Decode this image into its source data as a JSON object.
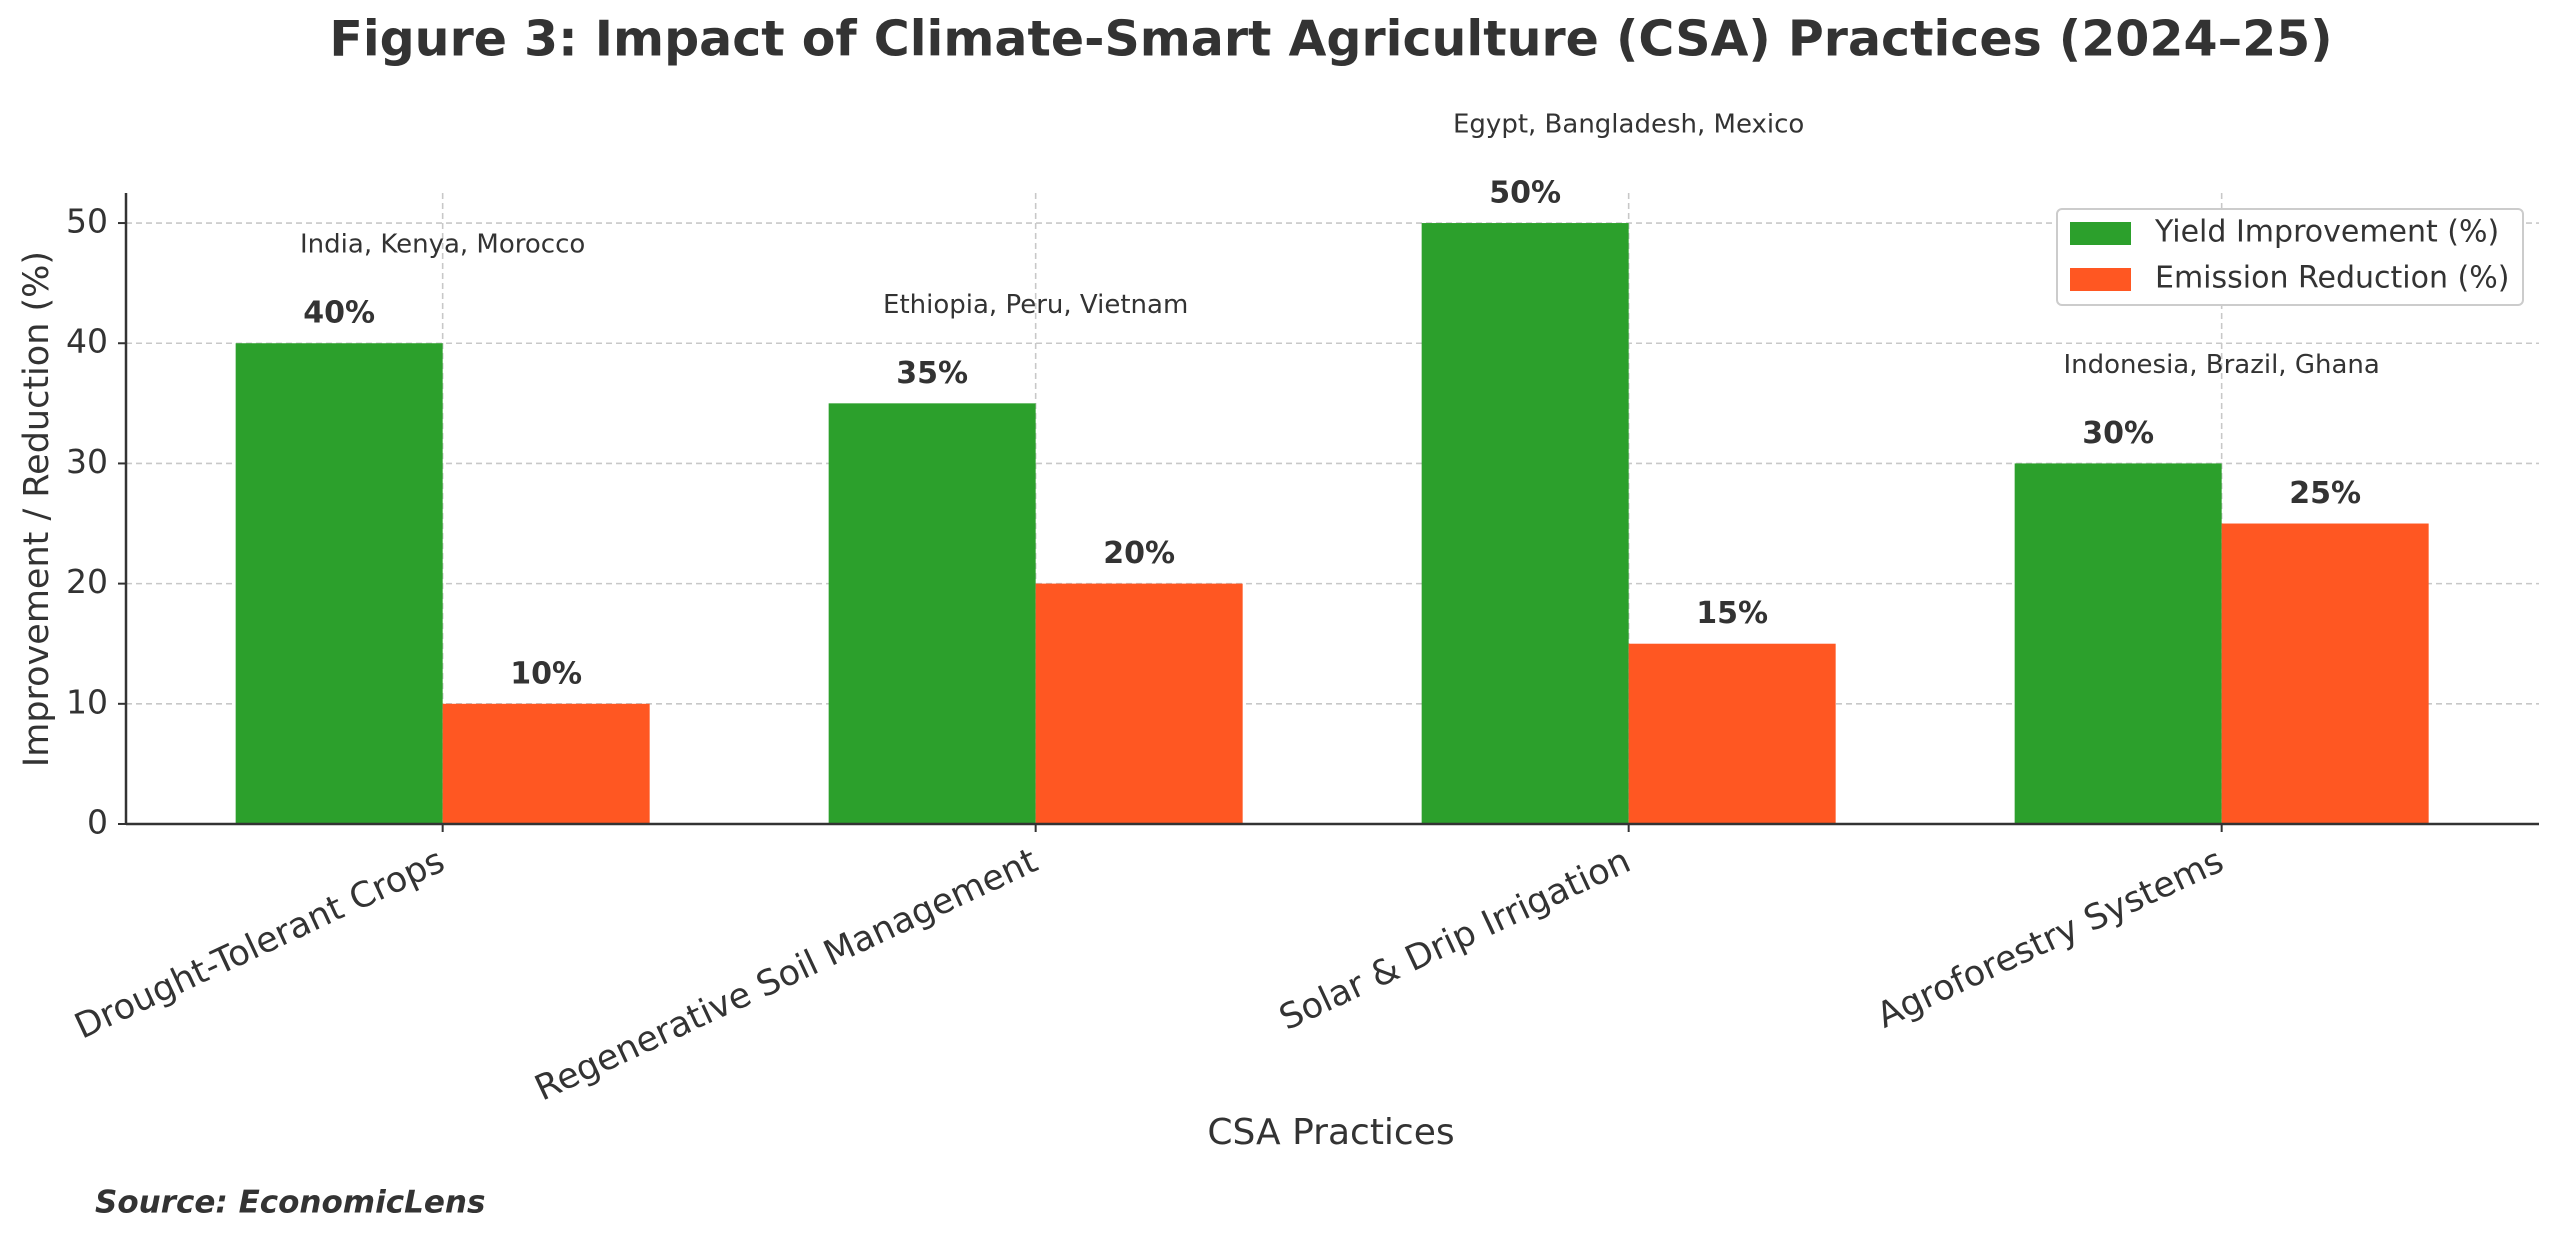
{
  "chart_data": {
    "type": "bar",
    "title": "Figure 3: Impact of Climate-Smart Agriculture (CSA) Practices (2024–25)",
    "x_label": "CSA Practices",
    "y_label": "Improvement / Reduction (%)",
    "source": "Source: EconomicLens",
    "categories": [
      "Drought-Tolerant Crops",
      "Regenerative Soil Management",
      "Solar & Drip Irrigation",
      "Agroforestry Systems"
    ],
    "annotations": [
      "India, Kenya, Morocco",
      "Ethiopia, Peru, Vietnam",
      "Egypt, Bangladesh, Mexico",
      "Indonesia, Brazil, Ghana"
    ],
    "series": [
      {
        "name": "Yield Improvement (%)",
        "color": "#2ca02c",
        "values": [
          40,
          35,
          50,
          30
        ],
        "value_labels": [
          "40%",
          "35%",
          "50%",
          "30%"
        ]
      },
      {
        "name": "Emission Reduction (%)",
        "color": "#ff5722",
        "values": [
          10,
          20,
          15,
          25
        ],
        "value_labels": [
          "10%",
          "20%",
          "15%",
          "25%"
        ]
      }
    ],
    "ylim": [
      0,
      52.5
    ],
    "yticks": [
      0,
      10,
      20,
      30,
      40,
      50
    ],
    "grid": true,
    "legend": "upper right"
  }
}
